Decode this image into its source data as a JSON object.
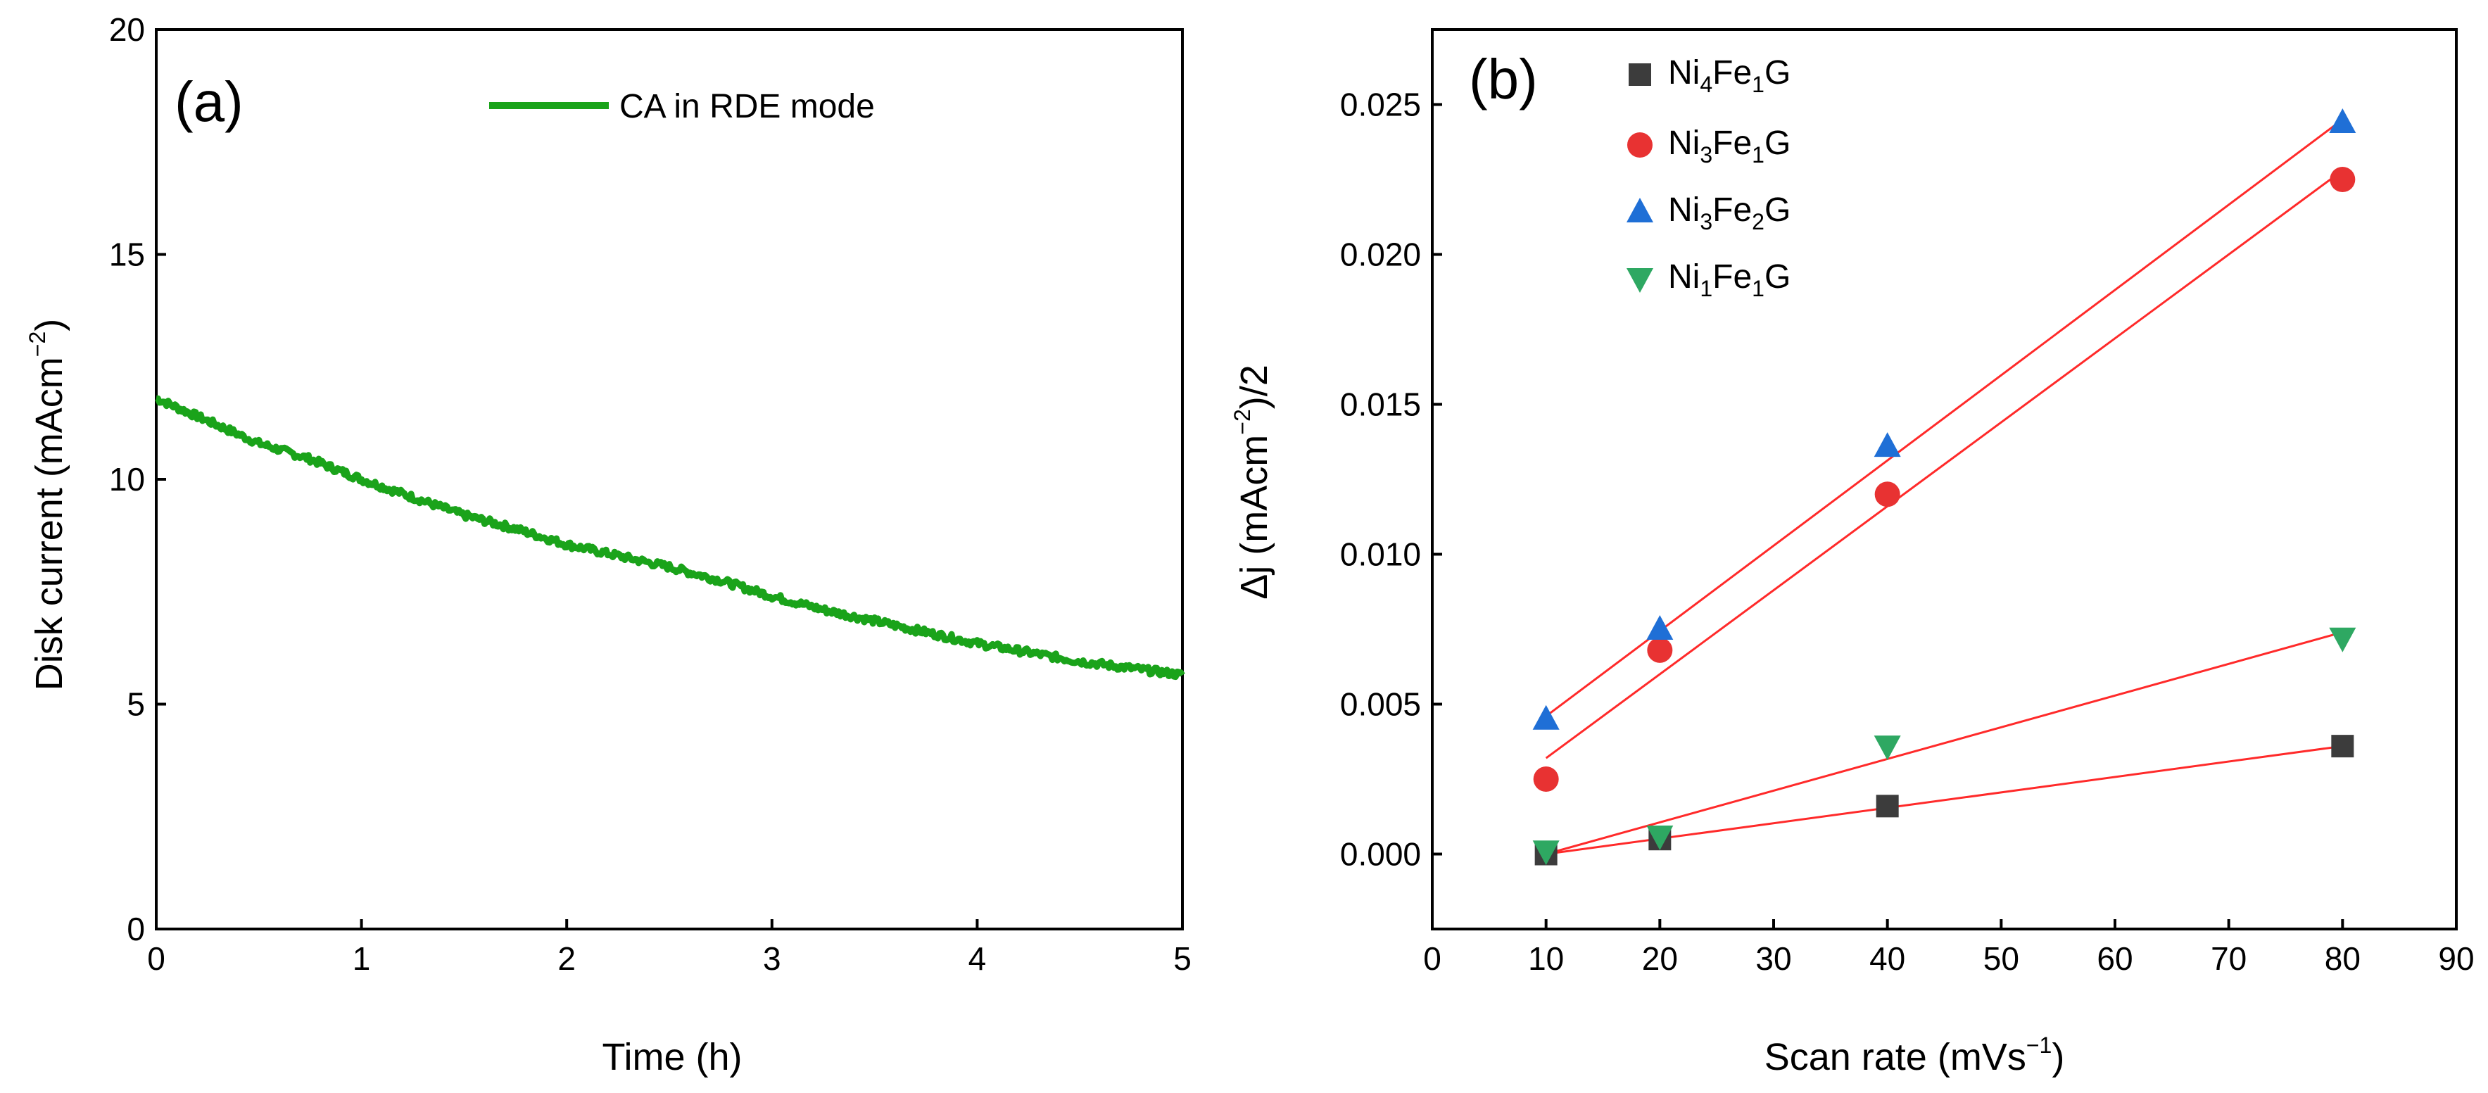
{
  "chart_data": [
    {
      "type": "line",
      "panel_label": "(a)",
      "xlabel": "Time (h)",
      "ylabel_main": "Disk current (mAcm",
      "ylabel_sup": "−2",
      "ylabel_end": ")",
      "xlim": [
        0,
        5
      ],
      "ylim": [
        0,
        20
      ],
      "xticks": [
        "0",
        "1",
        "2",
        "3",
        "4",
        "5"
      ],
      "yticks": [
        "0",
        "5",
        "10",
        "15",
        "20"
      ],
      "legend_position": "top-right",
      "series": [
        {
          "name": "CA in RDE mode",
          "color": "#1aa31a",
          "x": [
            0.0,
            0.25,
            0.5,
            0.75,
            1.0,
            1.25,
            1.5,
            1.75,
            2.0,
            2.25,
            2.5,
            2.75,
            3.0,
            3.25,
            3.5,
            3.75,
            4.0,
            4.25,
            4.5,
            4.75,
            5.0
          ],
          "y": [
            11.8,
            11.3,
            10.8,
            10.45,
            10.0,
            9.6,
            9.2,
            8.9,
            8.55,
            8.3,
            8.05,
            7.75,
            7.4,
            7.1,
            6.85,
            6.6,
            6.35,
            6.15,
            5.95,
            5.8,
            5.65
          ]
        }
      ]
    },
    {
      "type": "scatter",
      "panel_label": "(b)",
      "xlabel_main": "Scan rate (mVs",
      "xlabel_sup": "−1",
      "xlabel_end": ")",
      "ylabel_main": "Δj (mAcm",
      "ylabel_sup": "−2",
      "ylabel_end": ")/2",
      "xlim": [
        0,
        90
      ],
      "ylim": [
        -0.0025,
        0.0275
      ],
      "xticks": [
        "0",
        "10",
        "20",
        "30",
        "40",
        "50",
        "60",
        "70",
        "80",
        "90"
      ],
      "yticks": [
        "0.000",
        "0.005",
        "0.010",
        "0.015",
        "0.020",
        "0.025"
      ],
      "legend_position": "top-left",
      "fit_color": "#ff2a2a",
      "series": [
        {
          "name": "Ni4Fe1G",
          "label_parts": [
            "Ni",
            "4",
            "Fe",
            "1",
            "G"
          ],
          "marker": "square",
          "color": "#3c3c3c",
          "x": [
            10,
            20,
            40,
            80
          ],
          "y": [
            0.0,
            0.0005,
            0.0016,
            0.0036
          ],
          "fit": [
            [
              10,
              0.0
            ],
            [
              80,
              0.0036
            ]
          ]
        },
        {
          "name": "Ni3Fe1G",
          "label_parts": [
            "Ni",
            "3",
            "Fe",
            "1",
            "G"
          ],
          "marker": "circle",
          "color": "#e83232",
          "x": [
            10,
            20,
            40,
            80
          ],
          "y": [
            0.0025,
            0.0068,
            0.012,
            0.0225
          ],
          "fit": [
            [
              10,
              0.0032
            ],
            [
              80,
              0.0228
            ]
          ]
        },
        {
          "name": "Ni3Fe2G",
          "label_parts": [
            "Ni",
            "3",
            "Fe",
            "2",
            "G"
          ],
          "marker": "triangle-up",
          "color": "#1f6fd6",
          "x": [
            10,
            20,
            40,
            80
          ],
          "y": [
            0.0045,
            0.0075,
            0.0136,
            0.0244
          ],
          "fit": [
            [
              10,
              0.0046
            ],
            [
              80,
              0.0245
            ]
          ]
        },
        {
          "name": "Ni1Fe1G",
          "label_parts": [
            "Ni",
            "1",
            "Fe",
            "1",
            "G"
          ],
          "marker": "triangle-down",
          "color": "#2ea862",
          "x": [
            10,
            20,
            40,
            80
          ],
          "y": [
            0.0001,
            0.0006,
            0.0036,
            0.0072
          ],
          "fit": [
            [
              10,
              0.0
            ],
            [
              80,
              0.0074
            ]
          ]
        }
      ]
    }
  ]
}
